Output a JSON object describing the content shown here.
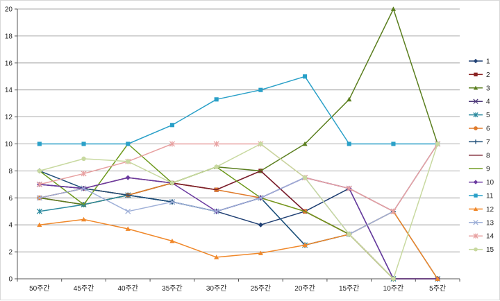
{
  "chart_data": {
    "type": "line",
    "title": "",
    "xlabel": "",
    "ylabel": "",
    "categories": [
      "50주간",
      "45주간",
      "40주간",
      "35주간",
      "30주간",
      "25주간",
      "20주간",
      "15주간",
      "10주간",
      "5주간"
    ],
    "y_ticks": [
      "0",
      "2",
      "4",
      "6",
      "8",
      "10",
      "12",
      "14",
      "16",
      "18",
      "20"
    ],
    "ylim": [
      0,
      20
    ],
    "grid": "horizontal",
    "legend": "right",
    "series": [
      {
        "name": "1",
        "color": "#1f3f73",
        "marker": "diamond",
        "values": [
          7,
          6.7,
          6.2,
          5.7,
          5,
          4,
          5,
          6.7,
          0,
          0
        ]
      },
      {
        "name": "2",
        "color": "#8b2323",
        "marker": "square",
        "values": [
          6,
          5.5,
          6.2,
          7.1,
          6.6,
          8,
          5,
          3.3,
          0,
          0
        ]
      },
      {
        "name": "3",
        "color": "#5b7f1f",
        "marker": "triangle",
        "values": [
          6,
          5.5,
          6.2,
          7.1,
          8.3,
          8,
          10,
          13.3,
          20,
          10
        ]
      },
      {
        "name": "4",
        "color": "#4e3a7a",
        "marker": "x",
        "values": [
          7,
          6.7,
          6.2,
          5.7,
          5,
          6,
          7.5,
          6.7,
          5,
          10
        ]
      },
      {
        "name": "5",
        "color": "#2c8a9e",
        "marker": "star",
        "values": [
          5,
          5.5,
          6.2,
          5.7,
          5,
          6,
          2.5,
          3.3,
          0,
          0
        ]
      },
      {
        "name": "6",
        "color": "#e07b2b",
        "marker": "circle",
        "values": [
          6,
          6.7,
          6.2,
          7.1,
          6.6,
          6,
          5,
          3.3,
          0,
          0
        ]
      },
      {
        "name": "7",
        "color": "#1f4e79",
        "marker": "plus",
        "values": [
          8,
          6.7,
          6.2,
          5.7,
          5,
          6,
          2.5,
          3.3,
          5,
          0
        ]
      },
      {
        "name": "8",
        "color": "#7a1f2e",
        "marker": "none",
        "values": [
          6,
          6.7,
          7.5,
          7.1,
          6.6,
          8,
          5,
          3.3,
          0,
          0
        ]
      },
      {
        "name": "9",
        "color": "#6e9a1e",
        "marker": "none",
        "values": [
          8,
          5.5,
          10,
          7.1,
          8.3,
          6,
          5,
          3.3,
          0,
          0
        ]
      },
      {
        "name": "10",
        "color": "#6b3aa0",
        "marker": "diamond",
        "values": [
          7,
          6.7,
          7.5,
          7.1,
          5,
          6,
          7.5,
          6.7,
          0,
          0
        ]
      },
      {
        "name": "11",
        "color": "#2aa0c8",
        "marker": "square",
        "values": [
          10,
          10,
          10,
          11.4,
          13.3,
          14,
          15,
          10,
          10,
          10
        ]
      },
      {
        "name": "12",
        "color": "#f0882a",
        "marker": "triangle",
        "values": [
          4,
          4.4,
          3.7,
          2.8,
          1.6,
          1.9,
          2.5,
          3.3,
          5,
          0
        ]
      },
      {
        "name": "13",
        "color": "#9fb0d8",
        "marker": "x",
        "values": [
          6,
          6.7,
          5,
          5.7,
          5,
          6,
          7.5,
          3.3,
          5,
          10
        ]
      },
      {
        "name": "14",
        "color": "#e8a2a2",
        "marker": "star",
        "values": [
          7,
          7.8,
          8.7,
          10,
          10,
          10,
          7.5,
          6.7,
          5,
          10
        ]
      },
      {
        "name": "15",
        "color": "#c8d9a0",
        "marker": "circle",
        "values": [
          8,
          8.9,
          8.7,
          7.1,
          8.3,
          10,
          7.5,
          3.3,
          0,
          10
        ]
      }
    ]
  }
}
